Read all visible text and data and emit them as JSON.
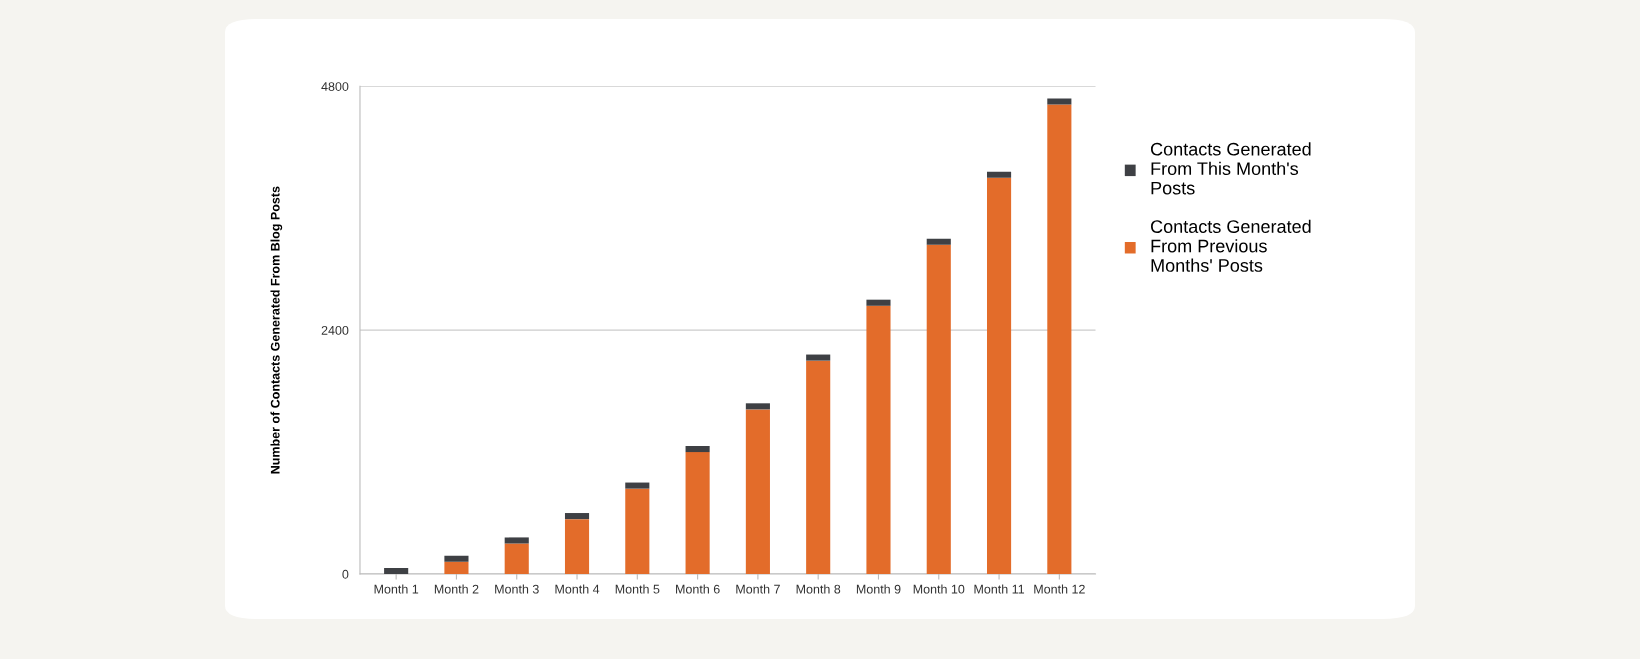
{
  "chart_data": {
    "type": "bar",
    "stacked": true,
    "ylabel": "Number of Contacts Generated From Blog Posts",
    "categories": [
      "Month 1",
      "Month 2",
      "Month 3",
      "Month 4",
      "Month 5",
      "Month 6",
      "Month 7",
      "Month 8",
      "Month 9",
      "Month 10",
      "Month 11",
      "Month 12"
    ],
    "series": [
      {
        "name": "Contacts Generated\nFrom Previous\nMonths' Posts",
        "color": "#e36c2a",
        "values": [
          0,
          120,
          300,
          540,
          840,
          1200,
          1620,
          2100,
          2640,
          3240,
          3900,
          4620
        ]
      },
      {
        "name": "Contacts Generated\nFrom This Month's\nPosts",
        "color": "#3e4044",
        "values": [
          60,
          60,
          60,
          60,
          60,
          60,
          60,
          60,
          60,
          60,
          60,
          60
        ]
      }
    ],
    "ylim": [
      0,
      4800
    ],
    "yticks": [
      0,
      2400,
      4800
    ],
    "grid": "y",
    "legend": "right"
  }
}
